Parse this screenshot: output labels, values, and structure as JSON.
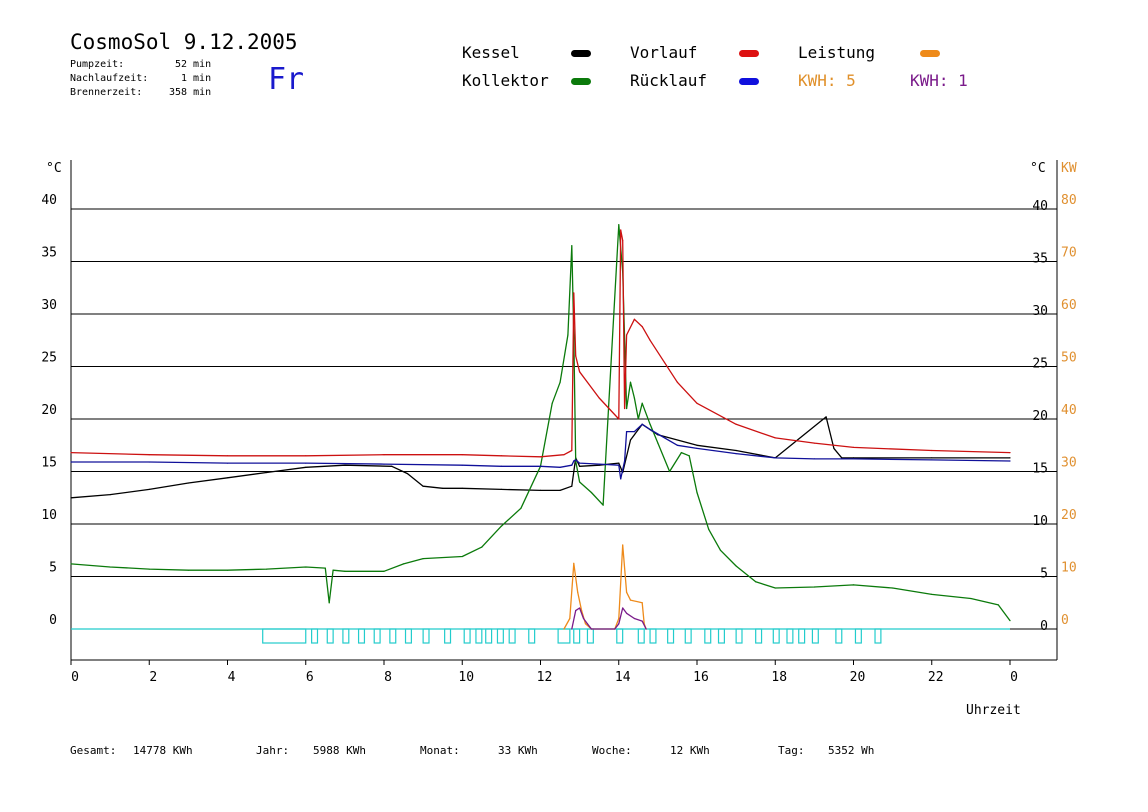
{
  "header": {
    "title": "CosmoSol 9.12.2005",
    "day": "Fr",
    "stats": [
      {
        "label": "Pumpzeit:",
        "value": "52 min"
      },
      {
        "label": "Nachlaufzeit:",
        "value": "1 min"
      },
      {
        "label": "Brennerzeit:",
        "value": "358 min"
      }
    ]
  },
  "legend": {
    "kessel": "Kessel",
    "kollektor": "Kollektor",
    "vorlauf": "Vorlauf",
    "ruecklauf": "Rücklauf",
    "leistung": "Leistung",
    "kwh_orange": "KWH: 5",
    "kwh_purple": "KWH: 1"
  },
  "footer": {
    "gesamt_label": "Gesamt:",
    "gesamt_value": "14778 KWh",
    "jahr_label": "Jahr:",
    "jahr_value": "5988 KWh",
    "monat_label": "Monat:",
    "monat_value": "33 KWh",
    "woche_label": "Woche:",
    "woche_value": "12 KWh",
    "tag_label": "Tag:",
    "tag_value": "5352 Wh"
  },
  "chart_data": {
    "type": "line",
    "xlabel": "Uhrzeit",
    "x_ticks": [
      "0",
      "2",
      "4",
      "6",
      "8",
      "10",
      "12",
      "14",
      "16",
      "18",
      "20",
      "22",
      "0"
    ],
    "xlim": [
      0,
      24
    ],
    "y_left_unit": "°C",
    "y_right_unit": "°C",
    "y_right2_unit": "KW",
    "ylim": [
      0,
      45
    ],
    "y_ticks": [
      0,
      5,
      10,
      15,
      20,
      25,
      30,
      35,
      40
    ],
    "y_ticks_right2": [
      0,
      10,
      20,
      30,
      40,
      50,
      60,
      70,
      80
    ],
    "grid": "horizontal",
    "colors": {
      "kessel": "#000000",
      "kollektor": "#0b7a0b",
      "vorlauf": "#cc1111",
      "ruecklauf": "#10109a",
      "leistung": "#ee8a1a",
      "leistung2": "#7a1a8a",
      "pump": "#22cccc",
      "axis_right2": "#e09030",
      "grid": "#000000"
    },
    "series": [
      {
        "name": "Kessel",
        "color": "#000000",
        "x": [
          0,
          1,
          2,
          3,
          4,
          5,
          6,
          7,
          8.2,
          8.6,
          9,
          9.5,
          10,
          11,
          12,
          12.5,
          12.8,
          12.9,
          13,
          13.5,
          14,
          14.1,
          14.3,
          14.6,
          15,
          16,
          17,
          18,
          19.3,
          19.5,
          19.7,
          20,
          22,
          24
        ],
        "y": [
          12.5,
          12.8,
          13.3,
          13.9,
          14.4,
          14.9,
          15.4,
          15.6,
          15.5,
          14.8,
          13.6,
          13.4,
          13.4,
          13.3,
          13.2,
          13.2,
          13.6,
          16.3,
          15.5,
          15.6,
          15.8,
          14.9,
          18.0,
          19.5,
          18.5,
          17.5,
          17,
          16.3,
          20.2,
          17.2,
          16.3,
          16.3,
          16.3,
          16.3
        ]
      },
      {
        "name": "Kollektor",
        "color": "#0b7a0b",
        "x": [
          0,
          1,
          2,
          3,
          4,
          5,
          6,
          6.5,
          6.6,
          6.7,
          7,
          8,
          8.5,
          9,
          10,
          10.5,
          11,
          11.5,
          12,
          12.3,
          12.5,
          12.7,
          12.8,
          12.85,
          12.9,
          13,
          13.3,
          13.6,
          14,
          14.1,
          14.2,
          14.3,
          14.4,
          14.5,
          14.6,
          14.8,
          15,
          15.3,
          15.6,
          15.8,
          16,
          16.3,
          16.6,
          17,
          17.5,
          18,
          19,
          20,
          21,
          22,
          23,
          23.7,
          24
        ],
        "y": [
          6.2,
          5.9,
          5.7,
          5.6,
          5.6,
          5.7,
          5.9,
          5.8,
          2.5,
          5.6,
          5.5,
          5.5,
          6.2,
          6.7,
          6.9,
          7.8,
          9.8,
          11.5,
          15.5,
          21.5,
          23.5,
          28,
          36.5,
          28,
          16,
          14,
          13,
          11.8,
          38.5,
          34,
          21,
          23.5,
          22,
          20,
          21.5,
          19.5,
          17.7,
          15,
          16.8,
          16.5,
          13,
          9.5,
          7.5,
          6,
          4.5,
          3.9,
          4,
          4.2,
          3.9,
          3.3,
          2.9,
          2.3,
          0.8
        ]
      },
      {
        "name": "Vorlauf",
        "color": "#cc1111",
        "x": [
          0,
          2,
          4,
          6,
          8,
          10,
          11,
          12,
          12.6,
          12.8,
          12.85,
          12.9,
          13,
          13.5,
          14,
          14.05,
          14.1,
          14.15,
          14.2,
          14.4,
          14.6,
          14.8,
          15.5,
          16,
          17,
          18,
          19,
          20,
          22,
          24
        ],
        "y": [
          16.8,
          16.6,
          16.5,
          16.5,
          16.6,
          16.6,
          16.5,
          16.4,
          16.6,
          17,
          32,
          26,
          24.5,
          22,
          20,
          38,
          37,
          21,
          28,
          29.5,
          28.8,
          27.5,
          23.5,
          21.5,
          19.5,
          18.2,
          17.7,
          17.3,
          17.0,
          16.8
        ]
      },
      {
        "name": "Rücklauf",
        "color": "#10109a",
        "x": [
          0,
          2,
          4,
          6,
          8,
          10,
          11,
          12,
          12.5,
          12.8,
          12.85,
          12.9,
          13,
          13.5,
          14,
          14.05,
          14.15,
          14.2,
          14.4,
          14.6,
          14.8,
          15.5,
          16,
          17,
          18,
          19,
          20,
          22,
          24
        ],
        "y": [
          15.9,
          15.9,
          15.8,
          15.8,
          15.7,
          15.6,
          15.5,
          15.5,
          15.4,
          15.6,
          16,
          16.1,
          15.8,
          15.7,
          15.6,
          14.3,
          16,
          18.8,
          18.8,
          19.5,
          19,
          17.5,
          17.2,
          16.7,
          16.3,
          16.2,
          16.2,
          16.1,
          16.0
        ]
      },
      {
        "name": "Leistung",
        "color": "#ee8a1a",
        "axis": "right2",
        "x": [
          12.6,
          12.75,
          12.85,
          12.95,
          13.05,
          13.15,
          13.3,
          13.9,
          14.0,
          14.1,
          14.2,
          14.3,
          14.6,
          14.65,
          14.7
        ],
        "y": [
          0,
          2,
          12.5,
          7,
          3.5,
          1,
          0,
          0,
          2,
          16,
          7,
          5.5,
          5,
          1,
          0
        ]
      },
      {
        "name": "KWH",
        "color": "#7a1a8a",
        "axis": "right2",
        "x": [
          12.8,
          12.9,
          13.0,
          13.1,
          13.2,
          13.3,
          13.9,
          14.0,
          14.1,
          14.2,
          14.4,
          14.6,
          14.7
        ],
        "y": [
          0,
          3.5,
          4,
          2,
          1,
          0,
          0,
          1,
          4,
          3,
          2,
          1.5,
          0
        ]
      }
    ],
    "pump_intervals": [
      [
        4.9,
        6
      ],
      [
        6.15,
        6.3
      ],
      [
        6.55,
        6.7
      ],
      [
        6.95,
        7.1
      ],
      [
        7.35,
        7.5
      ],
      [
        7.75,
        7.9
      ],
      [
        8.15,
        8.3
      ],
      [
        8.55,
        8.7
      ],
      [
        9.0,
        9.15
      ],
      [
        9.55,
        9.7
      ],
      [
        10.05,
        10.2
      ],
      [
        10.35,
        10.5
      ],
      [
        10.6,
        10.75
      ],
      [
        10.9,
        11.05
      ],
      [
        11.2,
        11.35
      ],
      [
        11.7,
        11.85
      ],
      [
        12.45,
        12.75
      ],
      [
        12.85,
        13.0
      ],
      [
        13.2,
        13.35
      ],
      [
        13.95,
        14.1
      ],
      [
        14.5,
        14.65
      ],
      [
        14.8,
        14.95
      ],
      [
        15.25,
        15.4
      ],
      [
        15.7,
        15.85
      ],
      [
        16.2,
        16.35
      ],
      [
        16.55,
        16.7
      ],
      [
        17.0,
        17.15
      ],
      [
        17.5,
        17.65
      ],
      [
        17.95,
        18.1
      ],
      [
        18.3,
        18.45
      ],
      [
        18.6,
        18.75
      ],
      [
        18.95,
        19.1
      ],
      [
        19.55,
        19.7
      ],
      [
        20.05,
        20.2
      ],
      [
        20.55,
        20.7
      ]
    ]
  }
}
